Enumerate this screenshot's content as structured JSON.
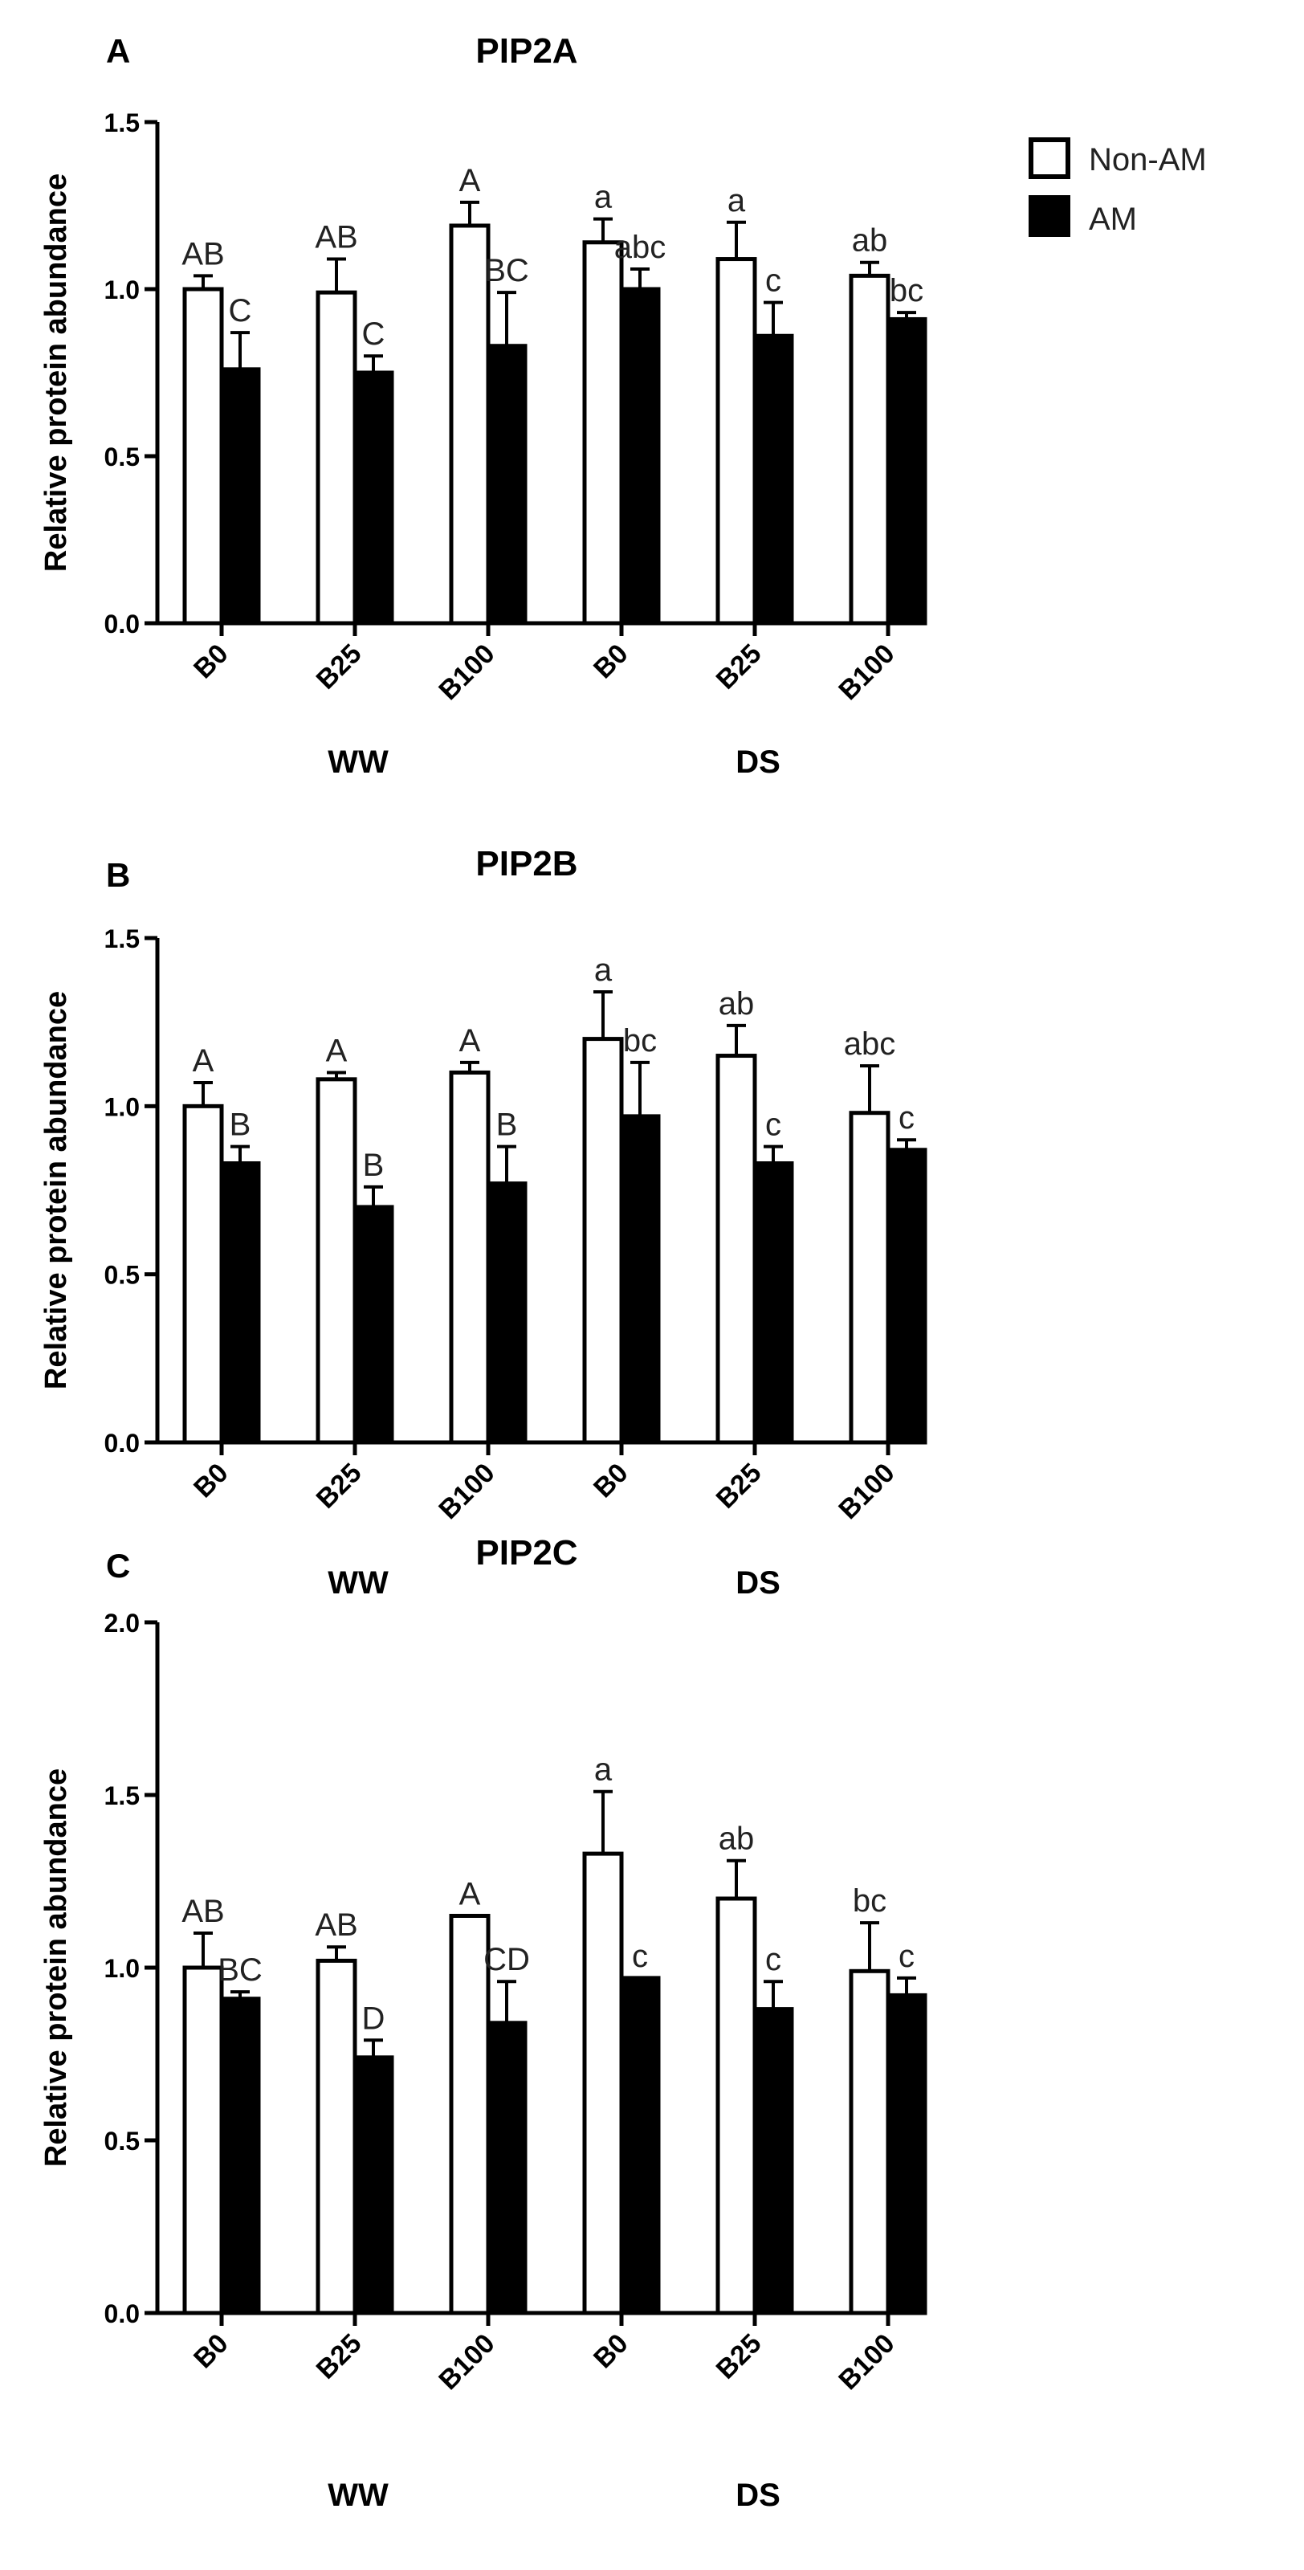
{
  "legend": {
    "position": "top-right",
    "items": [
      {
        "name": "Non-AM",
        "fill": "#ffffff",
        "stroke": "#000000"
      },
      {
        "name": "AM",
        "fill": "#000000",
        "stroke": "#000000"
      }
    ]
  },
  "chart_data": [
    {
      "type": "bar",
      "panel_label": "A",
      "title": "PIP2A",
      "ylabel": "Relative protein abundance",
      "ylim": [
        0,
        1.5
      ],
      "yticks": [
        "0.0",
        "0.5",
        "1.0",
        "1.5"
      ],
      "ytick_values": [
        0,
        0.5,
        1.0,
        1.5
      ],
      "categories": [
        "B0",
        "B25",
        "B100",
        "B0",
        "B25",
        "B100"
      ],
      "groups": [
        "WW",
        "DS"
      ],
      "series": [
        {
          "name": "Non-AM",
          "values": [
            1.0,
            0.99,
            1.19,
            1.14,
            1.09,
            1.04
          ],
          "errors": [
            0.04,
            0.1,
            0.07,
            0.07,
            0.11,
            0.04
          ],
          "letters": [
            "AB",
            "AB",
            "A",
            "a",
            "a",
            "ab"
          ]
        },
        {
          "name": "AM",
          "values": [
            0.76,
            0.75,
            0.83,
            1.0,
            0.86,
            0.91
          ],
          "errors": [
            0.11,
            0.05,
            0.16,
            0.06,
            0.1,
            0.02
          ],
          "letters": [
            "C",
            "C",
            "BC",
            "abc",
            "c",
            "bc"
          ]
        }
      ]
    },
    {
      "type": "bar",
      "panel_label": "B",
      "title": "PIP2B",
      "ylabel": "Relative protein abundance",
      "ylim": [
        0,
        1.5
      ],
      "yticks": [
        "0.0",
        "0.5",
        "1.0",
        "1.5"
      ],
      "ytick_values": [
        0,
        0.5,
        1.0,
        1.5
      ],
      "categories": [
        "B0",
        "B25",
        "B100",
        "B0",
        "B25",
        "B100"
      ],
      "groups": [
        "WW",
        "DS"
      ],
      "series": [
        {
          "name": "Non-AM",
          "values": [
            1.0,
            1.08,
            1.1,
            1.2,
            1.15,
            0.98
          ],
          "errors": [
            0.07,
            0.02,
            0.03,
            0.14,
            0.09,
            0.14
          ],
          "letters": [
            "A",
            "A",
            "A",
            "a",
            "ab",
            "abc"
          ]
        },
        {
          "name": "AM",
          "values": [
            0.83,
            0.7,
            0.77,
            0.97,
            0.83,
            0.87
          ],
          "errors": [
            0.05,
            0.06,
            0.11,
            0.16,
            0.05,
            0.03
          ],
          "letters": [
            "B",
            "B",
            "B",
            "bc",
            "c",
            "c"
          ]
        }
      ]
    },
    {
      "type": "bar",
      "panel_label": "C",
      "title": "PIP2C",
      "ylabel": "Relative protein abundance",
      "ylim": [
        0,
        2.0
      ],
      "yticks": [
        "0.0",
        "0.5",
        "1.0",
        "1.5",
        "2.0"
      ],
      "ytick_values": [
        0,
        0.5,
        1.0,
        1.5,
        2.0
      ],
      "categories": [
        "B0",
        "B25",
        "B100",
        "B0",
        "B25",
        "B100"
      ],
      "groups": [
        "WW",
        "DS"
      ],
      "series": [
        {
          "name": "Non-AM",
          "values": [
            1.0,
            1.02,
            1.15,
            1.33,
            1.2,
            0.99
          ],
          "errors": [
            0.1,
            0.04,
            0.0,
            0.18,
            0.11,
            0.14
          ],
          "letters": [
            "AB",
            "AB",
            "A",
            "a",
            "ab",
            "bc"
          ]
        },
        {
          "name": "AM",
          "values": [
            0.91,
            0.74,
            0.84,
            0.97,
            0.88,
            0.92
          ],
          "errors": [
            0.02,
            0.05,
            0.12,
            0.0,
            0.08,
            0.05
          ],
          "letters": [
            "BC",
            "D",
            "CD",
            "c",
            "c",
            "c"
          ]
        }
      ]
    }
  ]
}
